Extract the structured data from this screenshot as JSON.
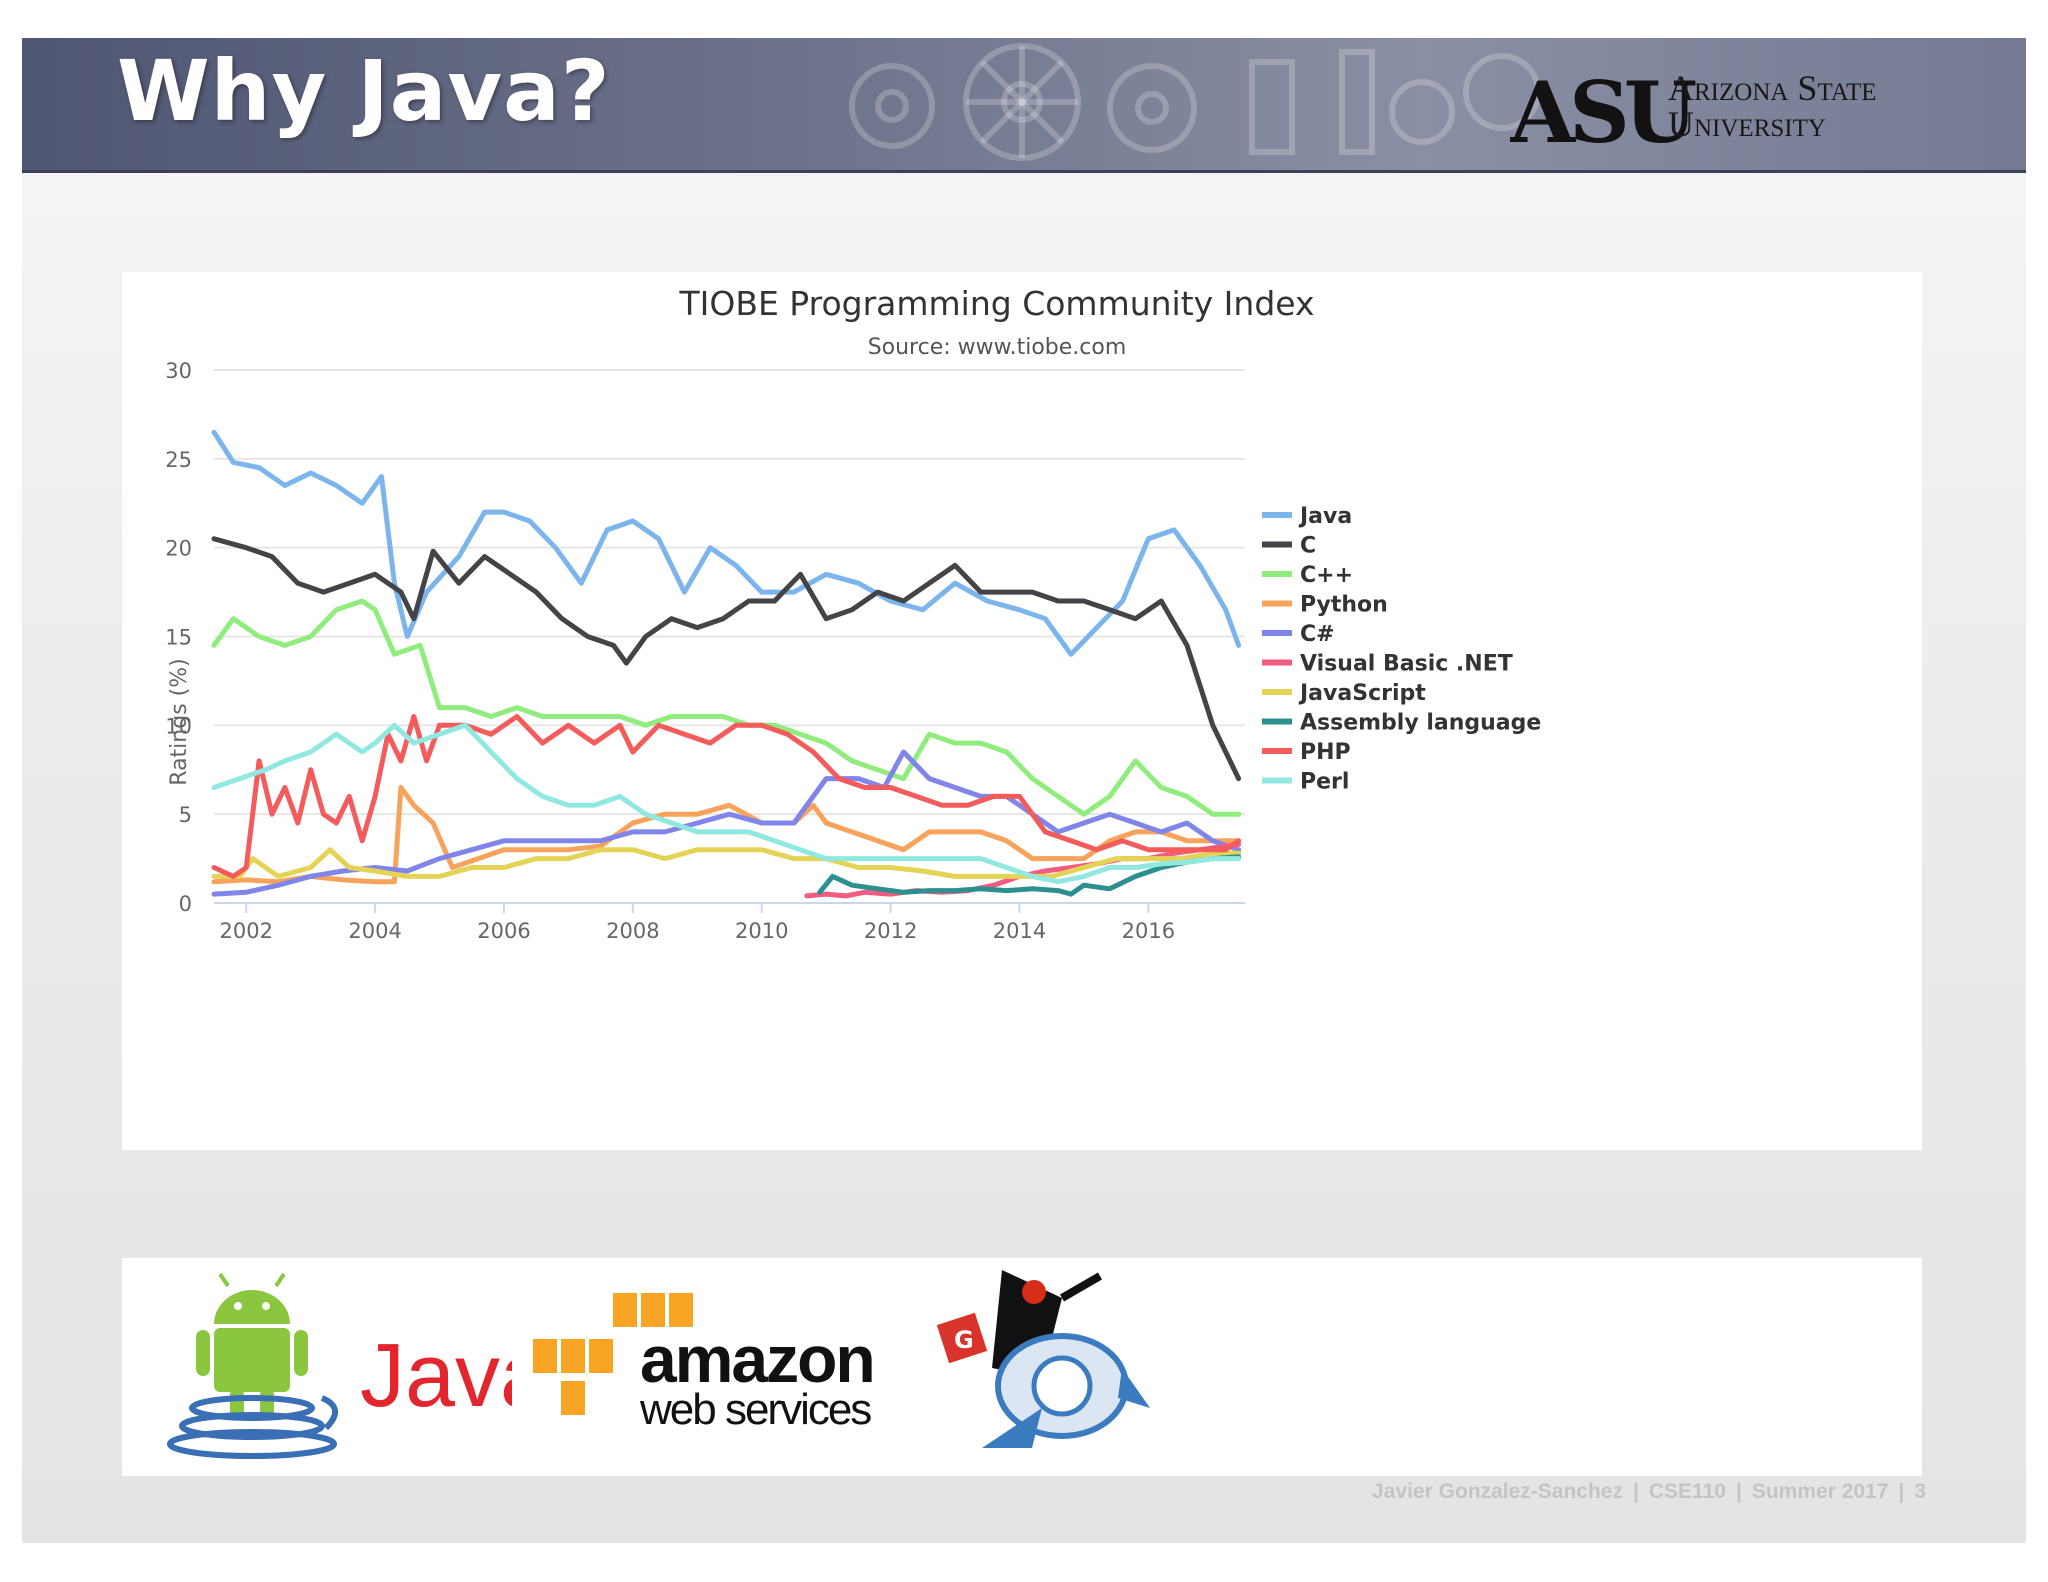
{
  "slide": {
    "title": "Why Java?",
    "university": {
      "line1": "Arizona State",
      "line2": "University",
      "mark": "ASU"
    },
    "footer": {
      "author": "Javier Gonzalez-Sanchez",
      "course": "CSE110",
      "term": "Summer 2017",
      "page": "3"
    },
    "logos": [
      {
        "name": "android-java",
        "text": "Java"
      },
      {
        "name": "amazon-web-services",
        "line1": "amazon",
        "line2": "web services"
      },
      {
        "name": "google-app-engine-duke",
        "badge": "G"
      }
    ]
  },
  "chart_data": {
    "type": "line",
    "title": "TIOBE Programming Community Index",
    "subtitle": "Source: www.tiobe.com",
    "ylabel": "Ratings (%)",
    "xlabel": "",
    "ylim": [
      0,
      30
    ],
    "yticks": [
      "0",
      "5",
      "10",
      "15",
      "20",
      "25",
      "30"
    ],
    "xlim": [
      2001.5,
      2017.5
    ],
    "xticks": [
      "2002",
      "2004",
      "2006",
      "2008",
      "2010",
      "2012",
      "2014",
      "2016"
    ],
    "grid": true,
    "legend_position": "right",
    "series": [
      {
        "name": "Java",
        "color": "#7cb5ec",
        "x": [
          2001.5,
          2001.8,
          2002.2,
          2002.6,
          2003.0,
          2003.4,
          2003.8,
          2004.1,
          2004.3,
          2004.5,
          2004.8,
          2005.3,
          2005.7,
          2006.0,
          2006.4,
          2006.8,
          2007.2,
          2007.6,
          2008.0,
          2008.4,
          2008.8,
          2009.2,
          2009.6,
          2010.0,
          2010.5,
          2011.0,
          2011.5,
          2012.0,
          2012.5,
          2013.0,
          2013.5,
          2014.0,
          2014.4,
          2014.8,
          2015.2,
          2015.6,
          2016.0,
          2016.4,
          2016.8,
          2017.2,
          2017.4
        ],
        "y": [
          26.5,
          24.8,
          24.5,
          23.5,
          24.2,
          23.5,
          22.5,
          24.0,
          18,
          15,
          17.5,
          19.5,
          22,
          22,
          21.5,
          20,
          18,
          21,
          21.5,
          20.5,
          17.5,
          20,
          19,
          17.5,
          17.5,
          18.5,
          18,
          17,
          16.5,
          18,
          17,
          16.5,
          16,
          14,
          15.5,
          17,
          20.5,
          21,
          19,
          16.5,
          14.5
        ]
      },
      {
        "name": "C",
        "color": "#434348",
        "x": [
          2001.5,
          2002.0,
          2002.4,
          2002.8,
          2003.2,
          2003.6,
          2004.0,
          2004.4,
          2004.6,
          2004.9,
          2005.3,
          2005.7,
          2006.1,
          2006.5,
          2006.9,
          2007.3,
          2007.7,
          2007.9,
          2008.2,
          2008.6,
          2009.0,
          2009.4,
          2009.8,
          2010.2,
          2010.6,
          2011.0,
          2011.4,
          2011.8,
          2012.2,
          2012.6,
          2013.0,
          2013.4,
          2013.8,
          2014.2,
          2014.6,
          2015.0,
          2015.4,
          2015.8,
          2016.2,
          2016.6,
          2017.0,
          2017.4
        ],
        "y": [
          20.5,
          20,
          19.5,
          18,
          17.5,
          18,
          18.5,
          17.5,
          16,
          19.8,
          18,
          19.5,
          18.5,
          17.5,
          16,
          15,
          14.5,
          13.5,
          15,
          16,
          15.5,
          16,
          17,
          17,
          18.5,
          16,
          16.5,
          17.5,
          17,
          18,
          19,
          17.5,
          17.5,
          17.5,
          17,
          17,
          16.5,
          16,
          17,
          14.5,
          10,
          7
        ]
      },
      {
        "name": "C++",
        "color": "#90ed7d",
        "x": [
          2001.5,
          2001.8,
          2002.2,
          2002.6,
          2003.0,
          2003.4,
          2003.8,
          2004.0,
          2004.3,
          2004.7,
          2005.0,
          2005.4,
          2005.8,
          2006.2,
          2006.6,
          2007.0,
          2007.4,
          2007.8,
          2008.2,
          2008.6,
          2009.0,
          2009.4,
          2009.8,
          2010.2,
          2010.6,
          2011.0,
          2011.4,
          2011.8,
          2012.2,
          2012.6,
          2013.0,
          2013.4,
          2013.8,
          2014.2,
          2014.6,
          2015.0,
          2015.4,
          2015.8,
          2016.2,
          2016.6,
          2017.0,
          2017.4
        ],
        "y": [
          14.5,
          16,
          15,
          14.5,
          15,
          16.5,
          17,
          16.5,
          14,
          14.5,
          11,
          11,
          10.5,
          11,
          10.5,
          10.5,
          10.5,
          10.5,
          10,
          10.5,
          10.5,
          10.5,
          10,
          10,
          9.5,
          9,
          8,
          7.5,
          7,
          9.5,
          9,
          9,
          8.5,
          7,
          6,
          5,
          6,
          8,
          6.5,
          6,
          5,
          5
        ]
      },
      {
        "name": "Python",
        "color": "#f7a35c",
        "x": [
          2001.5,
          2002.0,
          2002.5,
          2003.0,
          2003.5,
          2004.0,
          2004.3,
          2004.4,
          2004.6,
          2004.9,
          2005.2,
          2005.6,
          2006.0,
          2006.5,
          2007.0,
          2007.5,
          2008.0,
          2008.5,
          2009.0,
          2009.5,
          2010.0,
          2010.5,
          2010.8,
          2011.0,
          2011.4,
          2011.8,
          2012.2,
          2012.6,
          2013.0,
          2013.4,
          2013.8,
          2014.2,
          2014.6,
          2015.0,
          2015.4,
          2015.8,
          2016.2,
          2016.6,
          2017.0,
          2017.4
        ],
        "y": [
          1.2,
          1.3,
          1.2,
          1.5,
          1.3,
          1.2,
          1.2,
          6.5,
          5.5,
          4.5,
          2,
          2.5,
          3,
          3,
          3,
          3.2,
          4.5,
          5,
          5,
          5.5,
          4.5,
          4.5,
          5.5,
          4.5,
          4,
          3.5,
          3,
          4,
          4,
          4,
          3.5,
          2.5,
          2.5,
          2.5,
          3.5,
          4,
          4,
          3.5,
          3.5,
          3.5
        ]
      },
      {
        "name": "C#",
        "color": "#8085e9",
        "x": [
          2001.5,
          2002.0,
          2002.5,
          2003.0,
          2003.5,
          2004.0,
          2004.5,
          2005.0,
          2005.5,
          2006.0,
          2006.5,
          2007.0,
          2007.5,
          2008.0,
          2008.5,
          2009.0,
          2009.5,
          2010.0,
          2010.5,
          2011.0,
          2011.5,
          2011.9,
          2012.2,
          2012.6,
          2013.0,
          2013.4,
          2013.8,
          2014.2,
          2014.6,
          2015.0,
          2015.4,
          2015.8,
          2016.2,
          2016.6,
          2017.0,
          2017.4
        ],
        "y": [
          0.5,
          0.6,
          1,
          1.5,
          1.8,
          2,
          1.8,
          2.5,
          3,
          3.5,
          3.5,
          3.5,
          3.5,
          4,
          4,
          4.5,
          5,
          4.5,
          4.5,
          7,
          7,
          6.5,
          8.5,
          7,
          6.5,
          6,
          6,
          5,
          4,
          4.5,
          5,
          4.5,
          4,
          4.5,
          3.5,
          3
        ]
      },
      {
        "name": "Visual Basic .NET",
        "color": "#f15c80",
        "x": [
          2010.7,
          2011.0,
          2011.3,
          2011.6,
          2012.0,
          2012.4,
          2012.8,
          2013.2,
          2013.6,
          2014.0,
          2014.4,
          2014.8,
          2015.2,
          2015.6,
          2016.0,
          2016.4,
          2016.8,
          2017.2,
          2017.4
        ],
        "y": [
          0.4,
          0.5,
          0.4,
          0.6,
          0.5,
          0.7,
          0.6,
          0.7,
          1,
          1.5,
          1.8,
          2,
          2.2,
          2.5,
          2.5,
          2.8,
          3,
          3.2,
          3.3
        ]
      },
      {
        "name": "JavaScript",
        "color": "#e4d354",
        "x": [
          2001.5,
          2001.9,
          2002.1,
          2002.5,
          2003.0,
          2003.3,
          2003.6,
          2004.0,
          2004.5,
          2005.0,
          2005.5,
          2006.0,
          2006.5,
          2007.0,
          2007.5,
          2008.0,
          2008.5,
          2009.0,
          2009.5,
          2010.0,
          2010.5,
          2011.0,
          2011.5,
          2012.0,
          2012.5,
          2013.0,
          2013.5,
          2014.0,
          2014.5,
          2015.0,
          2015.5,
          2016.0,
          2016.5,
          2017.0,
          2017.4
        ],
        "y": [
          1.5,
          1.5,
          2.5,
          1.5,
          2,
          3,
          2,
          1.8,
          1.5,
          1.5,
          2,
          2,
          2.5,
          2.5,
          3,
          3,
          2.5,
          3,
          3,
          3,
          2.5,
          2.5,
          2,
          2,
          1.8,
          1.5,
          1.5,
          1.5,
          1.5,
          2,
          2.5,
          2.5,
          2.5,
          2.8,
          2.8
        ]
      },
      {
        "name": "Assembly language",
        "color": "#2b908f",
        "x": [
          2010.9,
          2011.1,
          2011.4,
          2011.8,
          2012.2,
          2012.6,
          2013.0,
          2013.4,
          2013.8,
          2014.2,
          2014.6,
          2014.8,
          2015.0,
          2015.4,
          2015.8,
          2016.2,
          2016.6,
          2017.0,
          2017.4
        ],
        "y": [
          0.6,
          1.5,
          1,
          0.8,
          0.6,
          0.7,
          0.7,
          0.8,
          0.7,
          0.8,
          0.7,
          0.5,
          1,
          0.8,
          1.5,
          2,
          2.3,
          2.5,
          2.6
        ]
      },
      {
        "name": "PHP",
        "color": "#f45b5b",
        "x": [
          2001.5,
          2001.8,
          2002.0,
          2002.2,
          2002.4,
          2002.6,
          2002.8,
          2003.0,
          2003.2,
          2003.4,
          2003.6,
          2003.8,
          2004.0,
          2004.2,
          2004.4,
          2004.6,
          2004.8,
          2005.0,
          2005.4,
          2005.8,
          2006.2,
          2006.6,
          2007.0,
          2007.4,
          2007.8,
          2008.0,
          2008.4,
          2008.8,
          2009.2,
          2009.6,
          2010.0,
          2010.4,
          2010.8,
          2011.2,
          2011.6,
          2012.0,
          2012.4,
          2012.8,
          2013.2,
          2013.6,
          2014.0,
          2014.4,
          2014.8,
          2015.2,
          2015.6,
          2016.0,
          2016.4,
          2016.8,
          2017.2,
          2017.4
        ],
        "y": [
          2,
          1.5,
          2,
          8,
          5,
          6.5,
          4.5,
          7.5,
          5,
          4.5,
          6,
          3.5,
          6,
          9.5,
          8,
          10.5,
          8,
          10,
          10,
          9.5,
          10.5,
          9,
          10,
          9,
          10,
          8.5,
          10,
          9.5,
          9,
          10,
          10,
          9.5,
          8.5,
          7,
          6.5,
          6.5,
          6,
          5.5,
          5.5,
          6,
          6,
          4,
          3.5,
          3,
          3.5,
          3,
          3,
          3,
          3,
          3.5
        ]
      },
      {
        "name": "Perl",
        "color": "#91e8e1",
        "x": [
          2001.5,
          2001.9,
          2002.3,
          2002.6,
          2003.0,
          2003.4,
          2003.8,
          2004.0,
          2004.3,
          2004.6,
          2005.0,
          2005.4,
          2005.8,
          2006.2,
          2006.6,
          2007.0,
          2007.4,
          2007.8,
          2008.2,
          2008.6,
          2009.0,
          2009.4,
          2009.8,
          2010.2,
          2010.6,
          2011.0,
          2011.4,
          2011.8,
          2012.2,
          2012.6,
          2013.0,
          2013.4,
          2013.8,
          2014.2,
          2014.6,
          2015.0,
          2015.4,
          2015.8,
          2016.2,
          2016.6,
          2017.0,
          2017.4
        ],
        "y": [
          6.5,
          7,
          7.5,
          8,
          8.5,
          9.5,
          8.5,
          9,
          10,
          9,
          9.5,
          10,
          8.5,
          7,
          6,
          5.5,
          5.5,
          6,
          5,
          4.5,
          4,
          4,
          4,
          3.5,
          3,
          2.5,
          2.5,
          2.5,
          2.5,
          2.5,
          2.5,
          2.5,
          2,
          1.5,
          1.2,
          1.5,
          2,
          2,
          2.2,
          2.3,
          2.5,
          2.5
        ]
      }
    ]
  }
}
